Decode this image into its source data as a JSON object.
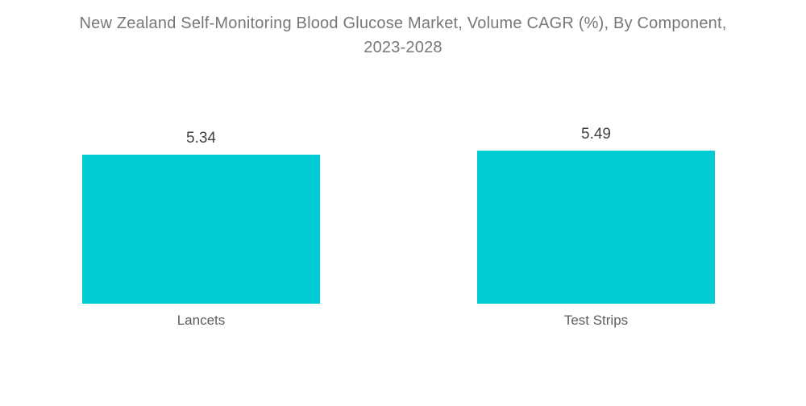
{
  "chart_data": {
    "type": "bar",
    "title": "New Zealand Self-Monitoring Blood Glucose Market, Volume CAGR (%), By Component, 2023-2028",
    "title_lines": [
      "New Zealand Self-Monitoring Blood Glucose Market, Volume CAGR (%), By Component,",
      "2023-2028"
    ],
    "categories": [
      "Lancets",
      "Test Strips"
    ],
    "values": [
      5.34,
      5.49
    ],
    "value_labels": [
      "5.34",
      "5.49"
    ],
    "xlabel": "",
    "ylabel": "",
    "ylim": [
      0,
      6
    ],
    "grid": "off",
    "legend": "none",
    "colors": {
      "bar": "#00CBD2",
      "title_text": "#75787B",
      "value_label_text": "#3F4347",
      "category_label_text": "#595D61",
      "background": "#FFFFFF"
    }
  }
}
